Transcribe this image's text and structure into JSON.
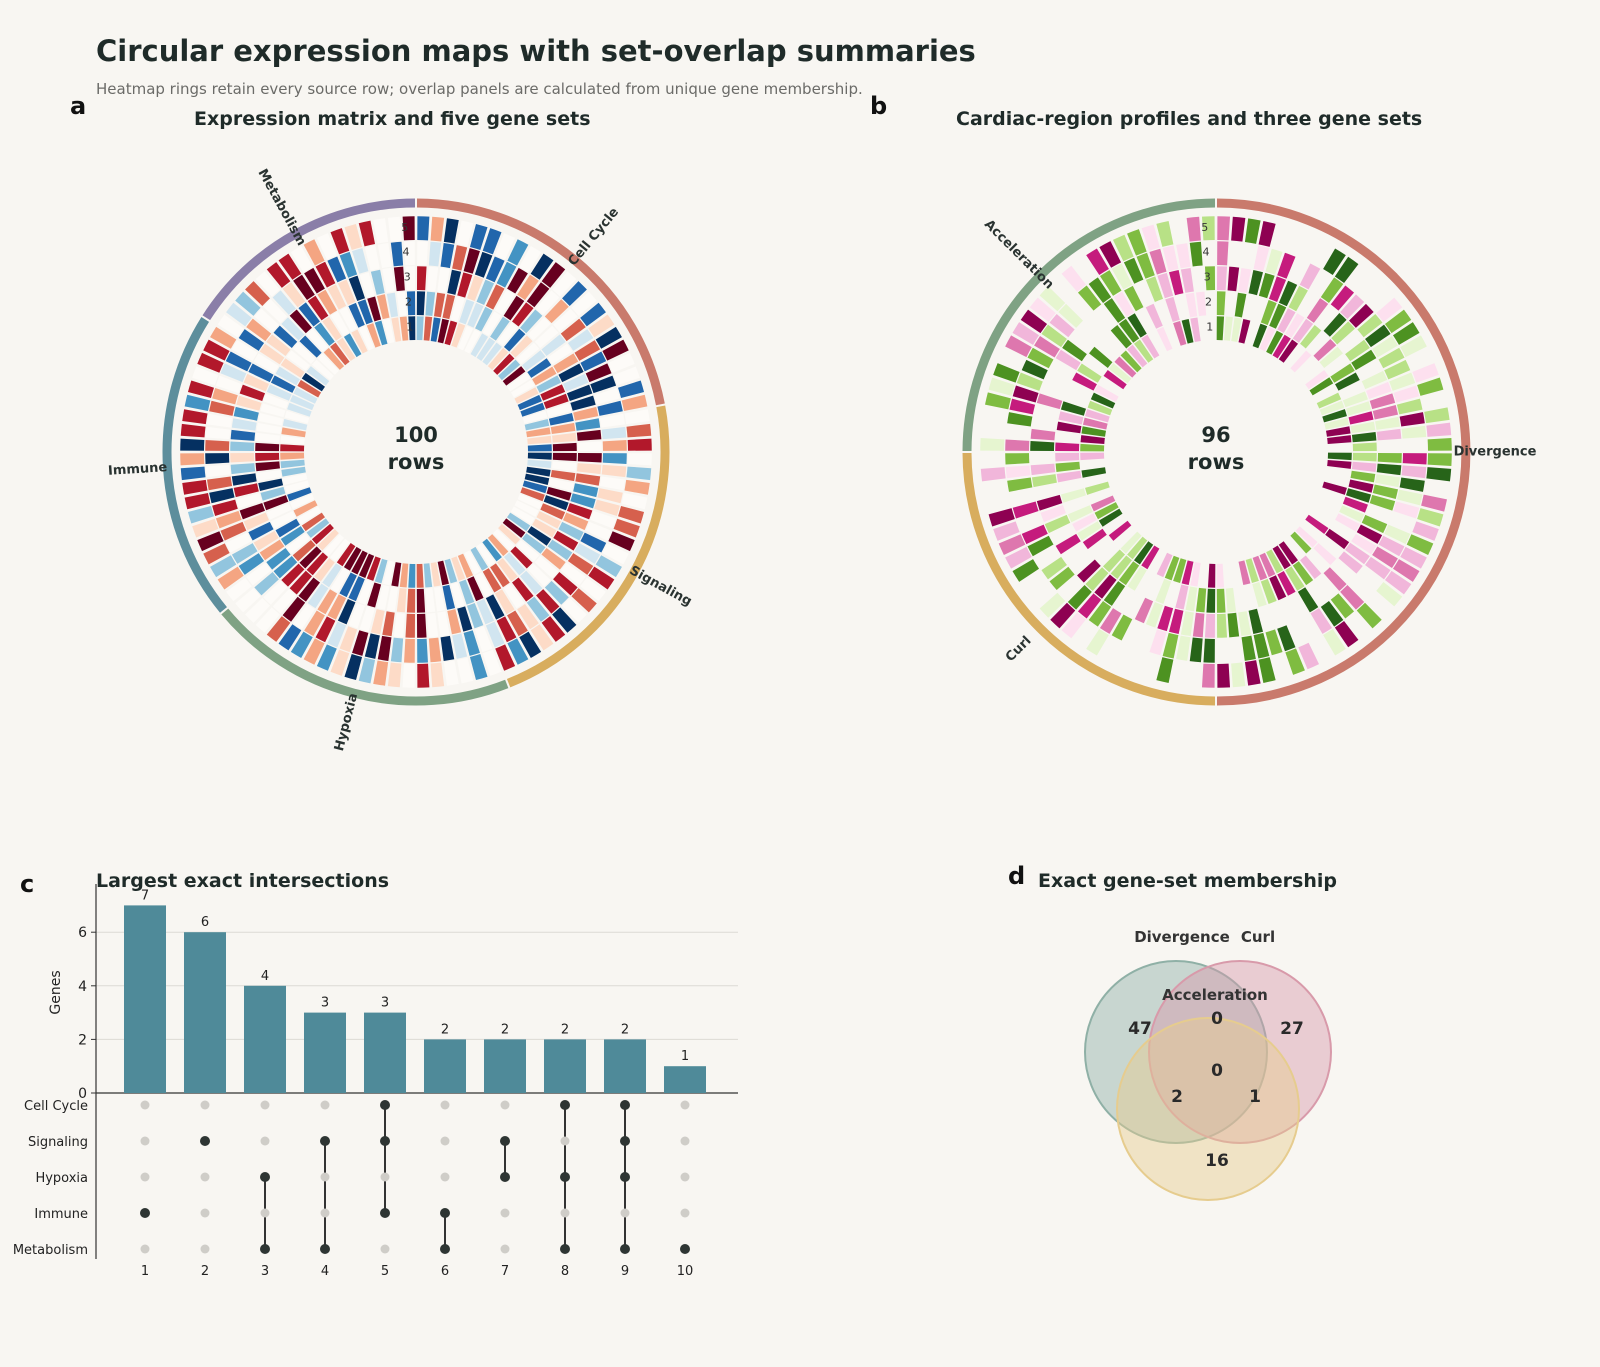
{
  "header": {
    "title": "Circular expression maps with set-overlap summaries",
    "subtitle": "Heatmap rings retain every source row; overlap panels are calculated from unique gene membership."
  },
  "panels": {
    "a": {
      "letter": "a",
      "title": "Expression matrix and five gene sets"
    },
    "b": {
      "letter": "b",
      "title": "Cardiac-region profiles and three gene sets"
    },
    "c": {
      "letter": "c",
      "title": "Largest exact intersections"
    },
    "d": {
      "letter": "d",
      "title": "Exact gene-set membership"
    }
  },
  "colors": {
    "ring_a_sets": [
      "#c97a6c",
      "#d8ad5e",
      "#7fa284",
      "#5d8e9c",
      "#8a7ea8"
    ],
    "ring_b_sets": [
      "#c97a6c",
      "#d8ad5e",
      "#7fa284"
    ],
    "bar": "#4f8a99",
    "venn": [
      "#8fb0a6",
      "#d89aaa",
      "#e6cc8e"
    ],
    "rdbu": [
      "#053061",
      "#2166ac",
      "#4393c3",
      "#92c5de",
      "#d1e5f0",
      "#fdfbf8",
      "#fddbc7",
      "#f4a582",
      "#d6604d",
      "#b2182b",
      "#67001f"
    ],
    "piyg": [
      "#8e0152",
      "#c51b7d",
      "#de77ae",
      "#f1b6da",
      "#fde0ef",
      "#f8f6f2",
      "#e6f5d0",
      "#b8e186",
      "#7fbc41",
      "#4d9221",
      "#276419"
    ]
  },
  "chart_data": [
    {
      "type": "heatmap",
      "layout": "circular",
      "rows": 100,
      "center_value": "100",
      "center_unit": "rows",
      "tracks": [
        "1",
        "2",
        "3",
        "4",
        "5"
      ],
      "colormap": "RdBu_r",
      "sets": [
        {
          "name": "Cell Cycle",
          "rows": 22
        },
        {
          "name": "Signaling",
          "rows": 22
        },
        {
          "name": "Hypoxia",
          "rows": 20
        },
        {
          "name": "Immune",
          "rows": 20
        },
        {
          "name": "Metabolism",
          "rows": 16
        }
      ]
    },
    {
      "type": "heatmap",
      "layout": "circular",
      "rows": 96,
      "center_value": "96",
      "center_unit": "rows",
      "tracks": [
        "1",
        "2",
        "3",
        "4",
        "5"
      ],
      "colormap": "PiYG",
      "sets": [
        {
          "name": "Divergence",
          "rows": 48
        },
        {
          "name": "Curl",
          "rows": 24
        },
        {
          "name": "Acceleration",
          "rows": 24
        }
      ]
    },
    {
      "type": "bar",
      "subtype": "upset",
      "ylabel": "Genes",
      "ylim": [
        0,
        7.5
      ],
      "yticks": [
        "0",
        "2",
        "4",
        "6"
      ],
      "categories": [
        "1",
        "2",
        "3",
        "4",
        "5",
        "6",
        "7",
        "8",
        "9",
        "10"
      ],
      "values": [
        7,
        6,
        4,
        3,
        3,
        2,
        2,
        2,
        2,
        1
      ],
      "value_labels": [
        "7",
        "6",
        "4",
        "3",
        "3",
        "2",
        "2",
        "2",
        "2",
        "1"
      ],
      "sets": [
        "Cell Cycle",
        "Signaling",
        "Hypoxia",
        "Immune",
        "Metabolism"
      ],
      "membership": [
        [
          "Immune"
        ],
        [
          "Signaling"
        ],
        [
          "Hypoxia",
          "Metabolism"
        ],
        [
          "Signaling",
          "Metabolism"
        ],
        [
          "Cell Cycle",
          "Signaling",
          "Immune"
        ],
        [
          "Immune",
          "Metabolism"
        ],
        [
          "Signaling",
          "Hypoxia"
        ],
        [
          "Cell Cycle",
          "Hypoxia",
          "Metabolism"
        ],
        [
          "Cell Cycle",
          "Signaling",
          "Hypoxia",
          "Metabolism"
        ],
        [
          "Metabolism"
        ]
      ]
    },
    {
      "type": "venn",
      "sets": [
        "Divergence",
        "Curl",
        "Acceleration"
      ],
      "regions": [
        {
          "id": "divergence_only",
          "label": "47"
        },
        {
          "id": "curl_only",
          "label": "27"
        },
        {
          "id": "acceleration_only",
          "label": "16"
        },
        {
          "id": "divergence_curl",
          "label": "0"
        },
        {
          "id": "divergence_acceleration",
          "label": "2"
        },
        {
          "id": "curl_acceleration",
          "label": "1"
        },
        {
          "id": "all_three",
          "label": "0"
        }
      ]
    }
  ]
}
